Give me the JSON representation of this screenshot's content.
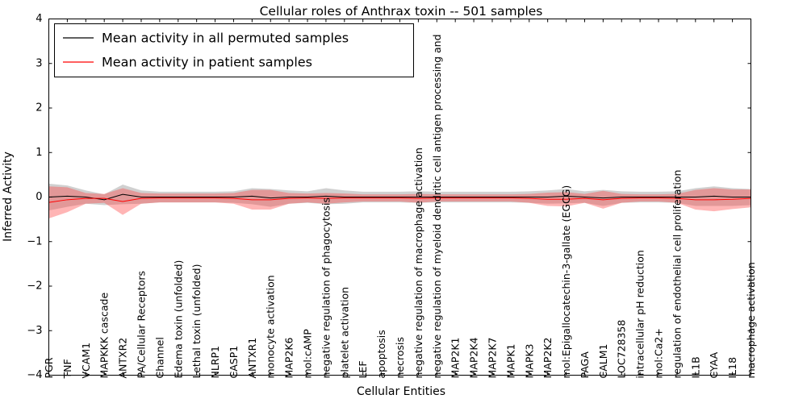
{
  "figure": {
    "background": "#ffffff",
    "axis_color": "#000000"
  },
  "chart_data": {
    "type": "line",
    "title": "Cellular roles of Anthrax toxin -- 501 samples",
    "xlabel": "Cellular Entities",
    "ylabel": "Inferred Activity",
    "ylim": [
      -4,
      4
    ],
    "yticks": [
      -4,
      -3,
      -2,
      -1,
      0,
      1,
      2,
      3,
      4
    ],
    "grid": false,
    "legend_position": "upper left",
    "categories": [
      "PGR",
      "TNF",
      "VCAM1",
      "MAPKKK cascade",
      "ANTXR2",
      "PA/Cellular Receptors",
      "Channel",
      "Edema toxin (unfolded)",
      "Lethal toxin (unfolded)",
      "NLRP1",
      "CASP1",
      "ANTXR1",
      "monocyte activation",
      "MAP2K6",
      "mol:cAMP",
      "negative regulation of phagocytosis",
      "platelet activation",
      "LEF",
      "apoptosis",
      "necrosis",
      "negative regulation of macrophage activation",
      "negative regulation of myeloid dendritic cell antigen processing and",
      "MAP2K1",
      "MAP2K4",
      "MAP2K7",
      "MAPK1",
      "MAPK3",
      "MAP2K2",
      "mol:Epigallocatechin-3-gallate (EGCG)",
      "PAGA",
      "CALM1",
      "LOC728358",
      "intracellular pH reduction",
      "mol:Ca2+",
      "regulation of endothelial cell proliferation",
      "IL1B",
      "CYAA",
      "IL18",
      "macrophage activation"
    ],
    "series": [
      {
        "name": "Mean activity in all permuted samples",
        "color": "#000000",
        "band_color": "rgba(150,150,150,0.45)",
        "values": [
          0,
          0.02,
          0,
          -0.06,
          0.06,
          0,
          0,
          0,
          0,
          0,
          0,
          0.02,
          -0.02,
          0,
          0,
          0.02,
          0,
          0,
          0,
          0,
          0,
          0,
          0,
          0,
          0,
          0,
          0,
          0,
          0.02,
          0,
          -0.02,
          0,
          0,
          0,
          0,
          0,
          0.02,
          0,
          0
        ],
        "band": [
          0.3,
          0.24,
          0.15,
          0.12,
          0.22,
          0.15,
          0.12,
          0.12,
          0.12,
          0.12,
          0.13,
          0.18,
          0.2,
          0.15,
          0.13,
          0.18,
          0.15,
          0.12,
          0.12,
          0.12,
          0.13,
          0.12,
          0.12,
          0.12,
          0.12,
          0.12,
          0.13,
          0.15,
          0.16,
          0.13,
          0.18,
          0.13,
          0.12,
          0.12,
          0.13,
          0.2,
          0.22,
          0.2,
          0.18
        ]
      },
      {
        "name": "Mean activity in patient samples",
        "color": "#ff0000",
        "band_color": "rgba(255,60,60,0.38)",
        "values": [
          -0.12,
          -0.06,
          -0.03,
          -0.03,
          -0.1,
          -0.03,
          -0.02,
          -0.02,
          -0.02,
          -0.02,
          -0.03,
          -0.06,
          -0.06,
          -0.03,
          -0.02,
          -0.03,
          -0.02,
          -0.02,
          -0.02,
          -0.02,
          -0.03,
          -0.02,
          -0.02,
          -0.02,
          -0.02,
          -0.02,
          -0.03,
          -0.05,
          -0.05,
          -0.03,
          -0.06,
          -0.03,
          -0.02,
          -0.02,
          -0.03,
          -0.06,
          -0.06,
          -0.05,
          -0.03
        ],
        "band": [
          0.36,
          0.28,
          0.12,
          0.1,
          0.3,
          0.12,
          0.1,
          0.1,
          0.1,
          0.1,
          0.12,
          0.22,
          0.22,
          0.12,
          0.1,
          0.12,
          0.1,
          0.08,
          0.08,
          0.08,
          0.1,
          0.08,
          0.08,
          0.08,
          0.08,
          0.08,
          0.1,
          0.15,
          0.16,
          0.1,
          0.2,
          0.1,
          0.08,
          0.08,
          0.1,
          0.22,
          0.26,
          0.22,
          0.2
        ]
      }
    ]
  }
}
